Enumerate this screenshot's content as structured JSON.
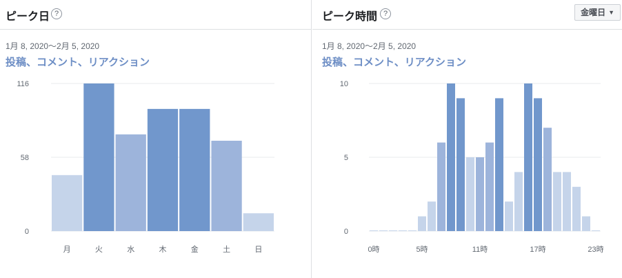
{
  "left": {
    "title": "ピーク日",
    "help": "?",
    "date_range": "1月 8, 2020〜2月 5, 2020",
    "metric": "投稿、コメント、リアクション"
  },
  "right": {
    "title": "ピーク時間",
    "help": "?",
    "date_range": "1月 8, 2020〜2月 5, 2020",
    "metric": "投稿、コメント、リアクション",
    "dropdown": {
      "selected": "金曜日",
      "icon": "caret-down-icon"
    }
  },
  "colors": {
    "dark": "#7197cc",
    "mid": "#9db4db",
    "light": "#c5d4ea",
    "grid": "#e9ebee",
    "accent": "#6d8ec5"
  },
  "chart_data": [
    {
      "type": "bar",
      "categories": [
        "月",
        "火",
        "水",
        "木",
        "金",
        "土",
        "日"
      ],
      "values": [
        44,
        116,
        76,
        96,
        96,
        71,
        14
      ],
      "shade": [
        "light",
        "dark",
        "mid",
        "dark",
        "dark",
        "mid",
        "light"
      ],
      "yticks": [
        0,
        58,
        116
      ],
      "ylim": [
        0,
        116
      ]
    },
    {
      "type": "bar",
      "categories": [
        "0時",
        "1時",
        "2時",
        "3時",
        "4時",
        "5時",
        "6時",
        "7時",
        "8時",
        "9時",
        "10時",
        "11時",
        "12時",
        "13時",
        "14時",
        "15時",
        "16時",
        "17時",
        "18時",
        "19時",
        "20時",
        "21時",
        "22時",
        "23時"
      ],
      "xtick_labels": [
        "0時",
        "5時",
        "11時",
        "17時",
        "23時"
      ],
      "values": [
        0,
        0,
        0,
        0,
        0,
        1,
        2,
        6,
        10,
        9,
        5,
        5,
        6,
        9,
        2,
        4,
        10,
        9,
        7,
        4,
        4,
        3,
        1,
        0
      ],
      "shade": [
        "light",
        "light",
        "light",
        "light",
        "light",
        "light",
        "light",
        "mid",
        "dark",
        "dark",
        "light",
        "mid",
        "mid",
        "dark",
        "light",
        "light",
        "dark",
        "dark",
        "mid",
        "light",
        "light",
        "light",
        "light",
        "light"
      ],
      "yticks": [
        0,
        5,
        10
      ],
      "ylim": [
        0,
        10
      ]
    }
  ]
}
